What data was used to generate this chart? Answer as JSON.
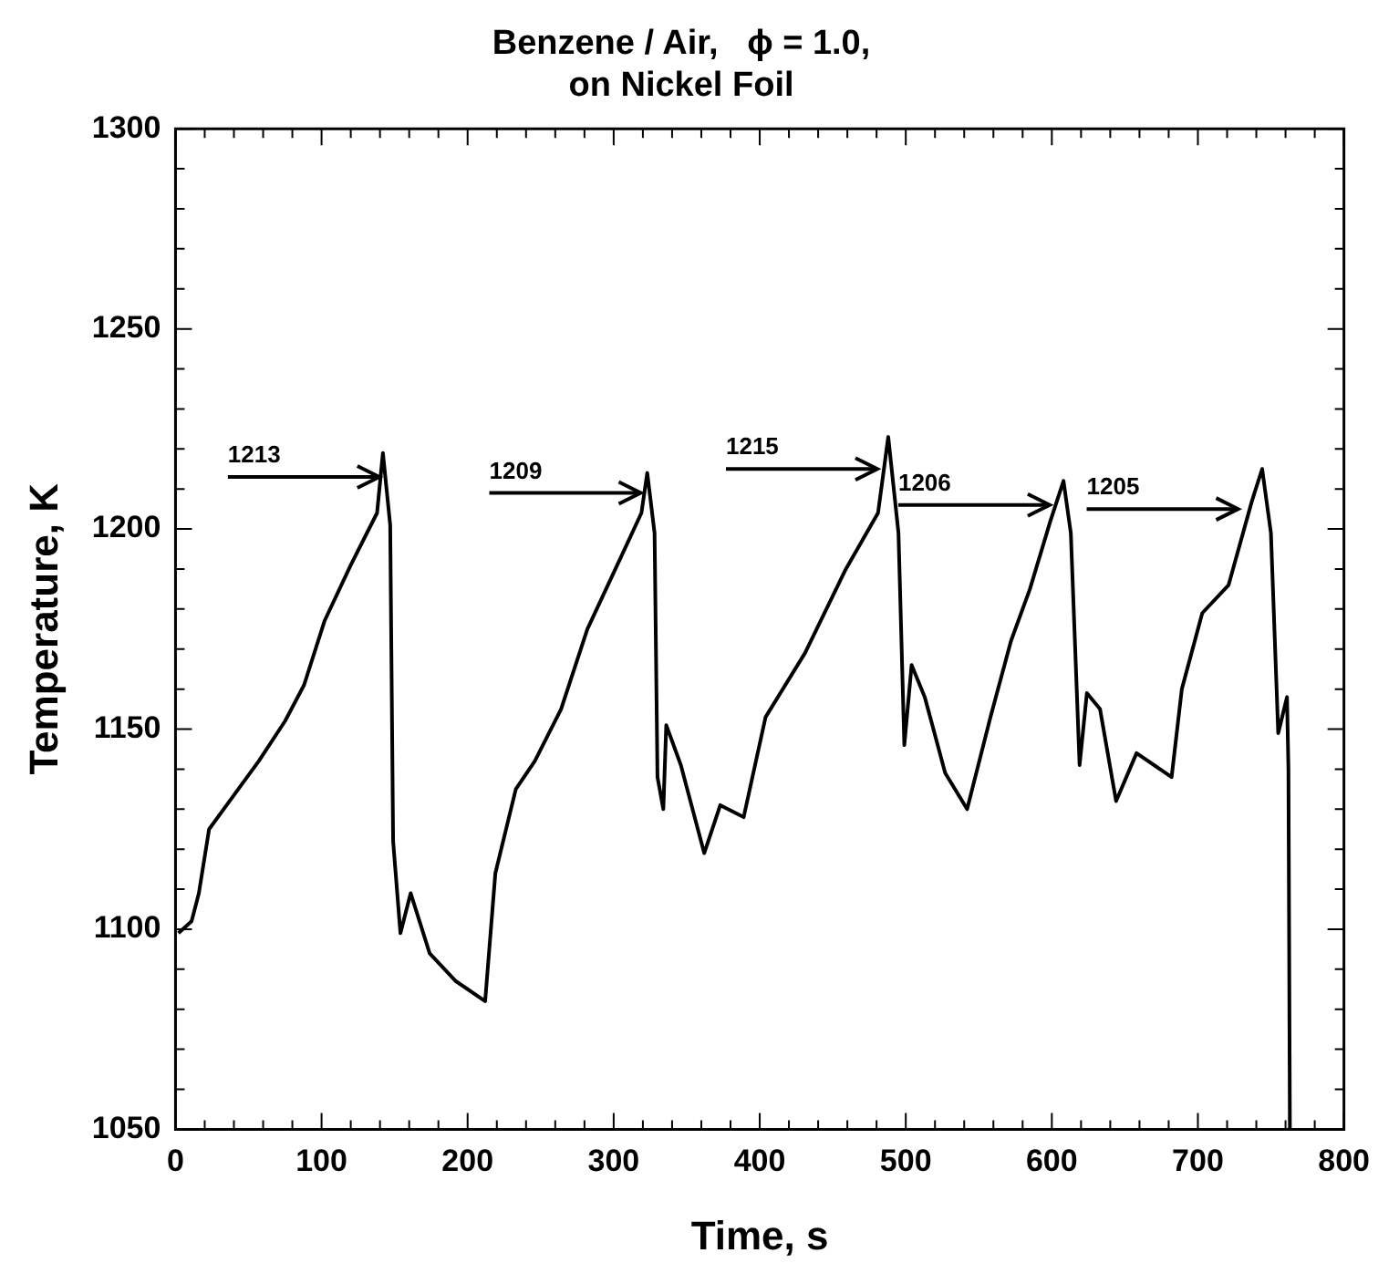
{
  "chart_data": {
    "type": "line",
    "title": "Benzene / Air,   ϕ = 1.0,\non Nickel Foil",
    "xlabel": "Time, s",
    "ylabel": "Temperature, K",
    "x": [
      2,
      11,
      16,
      23,
      39,
      57,
      75,
      88,
      102,
      120,
      138,
      142,
      147,
      149,
      154,
      161,
      174,
      192,
      212,
      219,
      233,
      246,
      264,
      282,
      305,
      319,
      323,
      328,
      330,
      334,
      336,
      346,
      362,
      373,
      389,
      404,
      431,
      459,
      481,
      488,
      495,
      499,
      504,
      513,
      527,
      542,
      558,
      572,
      585,
      599,
      608,
      613,
      619,
      624,
      633,
      644,
      658,
      682,
      689,
      703,
      721,
      737,
      744,
      750,
      755,
      761,
      762,
      763
    ],
    "series": [
      {
        "color": "#000000",
        "values": [
          1099,
          1102,
          1109,
          1125,
          1133,
          1142,
          1152,
          1161,
          1177,
          1191,
          1204,
          1219,
          1201,
          1122,
          1099,
          1109,
          1094,
          1087,
          1082,
          1114,
          1135,
          1142,
          1155,
          1175,
          1193,
          1204,
          1214,
          1199,
          1138,
          1130,
          1151,
          1141,
          1119,
          1131,
          1128,
          1153,
          1169,
          1190,
          1204,
          1223,
          1199,
          1146,
          1166,
          1158,
          1139,
          1130,
          1153,
          1172,
          1185,
          1202,
          1212,
          1199,
          1141,
          1159,
          1155,
          1132,
          1144,
          1138,
          1160,
          1179,
          1186,
          1207,
          1215,
          1199,
          1149,
          1158,
          1140,
          1050
        ]
      }
    ],
    "xlim": [
      0,
      800
    ],
    "xticks": [
      0,
      100,
      200,
      300,
      400,
      500,
      600,
      700,
      800
    ],
    "ylim": [
      1050,
      1300
    ],
    "yticks": [
      1050,
      1100,
      1150,
      1200,
      1250,
      1300
    ],
    "grid": false,
    "legend": false,
    "marker": "none",
    "line_style": "solid",
    "annotations": [
      {
        "text": "1213",
        "x": 142,
        "y": 1213
      },
      {
        "text": "1209",
        "x": 321,
        "y": 1209
      },
      {
        "text": "1215",
        "x": 483,
        "y": 1215
      },
      {
        "text": "1206",
        "x": 601,
        "y": 1206
      },
      {
        "text": "1205",
        "x": 730,
        "y": 1205
      }
    ]
  }
}
